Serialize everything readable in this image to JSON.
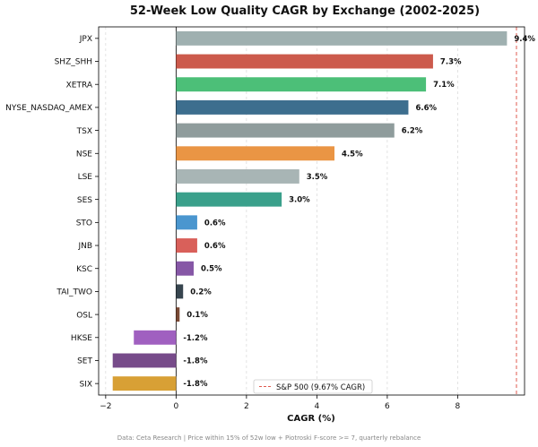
{
  "chart_data": {
    "type": "bar",
    "orientation": "horizontal",
    "title": "52-Week Low Quality CAGR by Exchange (2002-2025)",
    "xlabel": "CAGR (%)",
    "ylabel": "",
    "xlim": [
      -2.2,
      9.9
    ],
    "xticks": [
      -2,
      0,
      2,
      4,
      6,
      8
    ],
    "grid": "vertical-dashed",
    "categories": [
      "JPX",
      "SHZ_SHH",
      "XETRA",
      "NYSE_NASDAQ_AMEX",
      "TSX",
      "NSE",
      "LSE",
      "SES",
      "STO",
      "JNB",
      "KSC",
      "TAI_TWO",
      "OSL",
      "HKSE",
      "SET",
      "SIX"
    ],
    "values": [
      9.4,
      7.3,
      7.1,
      6.6,
      6.2,
      4.5,
      3.5,
      3.0,
      0.6,
      0.6,
      0.5,
      0.2,
      0.1,
      -1.2,
      -1.8,
      -1.8
    ],
    "value_labels": [
      "9.4%",
      "7.3%",
      "7.1%",
      "6.6%",
      "6.2%",
      "4.5%",
      "3.5%",
      "3.0%",
      "0.6%",
      "0.6%",
      "0.5%",
      "0.2%",
      "0.1%",
      "-1.2%",
      "-1.8%",
      "-1.8%"
    ],
    "colors": [
      "#9fb0b0",
      "#cc5a4c",
      "#4cbf78",
      "#3d6e8e",
      "#8f9c9c",
      "#ea9544",
      "#a8b5b5",
      "#3aa08b",
      "#4a96cf",
      "#d9605a",
      "#8657a6",
      "#37454f",
      "#7a4a35",
      "#a060c0",
      "#774b8a",
      "#d8a035"
    ],
    "reference_line": {
      "value": 9.67,
      "color": "#e05a4f",
      "label": "S&P 500 (9.67% CAGR)"
    },
    "legend": {
      "placement": "bottom-center"
    },
    "footnote": "Data: Ceta Research | Price within 15% of 52w low + Piotroski F-score >= 7, quarterly rebalance"
  }
}
